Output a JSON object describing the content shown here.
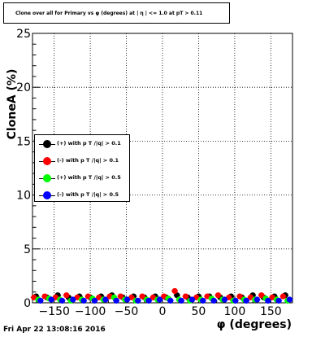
{
  "header": {
    "title": "Clone  over all for Primary vs φ (degrees) at | η | <= 1.0 at pT > 0.11"
  },
  "footer": {
    "timestamp": "Fri Apr 22 13:08:16 2016"
  },
  "chart_data": {
    "type": "scatter",
    "title": "Clone  over all for Primary vs φ (degrees) at | η | <= 1.0 at pT > 0.11",
    "xlabel": "φ (degrees)",
    "ylabel": "CloneA (%)",
    "xlim": [
      -180,
      180
    ],
    "ylim": [
      0,
      25
    ],
    "x_ticks": [
      -150,
      -100,
      -50,
      0,
      50,
      100,
      150
    ],
    "x_tick_labels": [
      "−150",
      "−100",
      "−50",
      "0",
      "50",
      "100",
      "150"
    ],
    "y_ticks": [
      0,
      5,
      10,
      15,
      20,
      25
    ],
    "y_tick_labels": [
      "0",
      "5",
      "10",
      "15",
      "20",
      "25"
    ],
    "grid": true,
    "legend_position": "left-middle",
    "series": [
      {
        "name": "(+) with p T /|q| > 0.1",
        "color": "#000000",
        "x": [
          -175,
          -160,
          -145,
          -130,
          -115,
          -100,
          -85,
          -70,
          -55,
          -40,
          -25,
          -10,
          5,
          20,
          35,
          50,
          65,
          80,
          95,
          110,
          125,
          140,
          155,
          170
        ],
        "y": [
          0.6,
          0.5,
          0.7,
          0.5,
          0.6,
          0.5,
          0.6,
          0.7,
          0.5,
          0.6,
          0.5,
          0.6,
          0.5,
          0.7,
          0.5,
          0.6,
          0.6,
          0.5,
          0.6,
          0.5,
          0.7,
          0.5,
          0.6,
          0.7
        ]
      },
      {
        "name": "(-) with p T /|q| > 0.1",
        "color": "#ff0000",
        "x": [
          -178,
          -163,
          -148,
          -133,
          -118,
          -103,
          -88,
          -73,
          -58,
          -43,
          -28,
          -13,
          2,
          17,
          32,
          47,
          62,
          77,
          92,
          107,
          122,
          137,
          152,
          167
        ],
        "y": [
          0.5,
          0.6,
          0.5,
          0.7,
          0.5,
          0.6,
          0.5,
          0.6,
          0.6,
          0.5,
          0.6,
          0.5,
          0.6,
          1.1,
          0.6,
          0.5,
          0.6,
          0.7,
          0.5,
          0.6,
          0.5,
          0.7,
          0.5,
          0.6
        ]
      },
      {
        "name": "(+) with p T /|q| > 0.5",
        "color": "#00ff00",
        "x": [
          -172,
          -157,
          -142,
          -127,
          -112,
          -97,
          -82,
          -67,
          -52,
          -37,
          -22,
          -7,
          8,
          23,
          38,
          53,
          68,
          83,
          98,
          113,
          128,
          143,
          158,
          173
        ],
        "y": [
          0.3,
          0.4,
          0.3,
          0.2,
          0.3,
          0.4,
          0.3,
          0.5,
          0.3,
          0.2,
          0.3,
          0.3,
          0.4,
          0.3,
          0.2,
          0.3,
          0.4,
          0.3,
          0.2,
          0.3,
          0.3,
          0.4,
          0.3,
          0.2
        ]
      },
      {
        "name": "(-) with p T /|q| > 0.5",
        "color": "#0000ff",
        "x": [
          -169,
          -154,
          -139,
          -124,
          -109,
          -94,
          -79,
          -64,
          -49,
          -34,
          -19,
          -4,
          11,
          26,
          41,
          56,
          71,
          86,
          101,
          116,
          131,
          146,
          161,
          176
        ],
        "y": [
          0.2,
          0.3,
          0.2,
          0.3,
          0.2,
          0.2,
          0.3,
          0.2,
          0.3,
          0.2,
          0.2,
          0.3,
          0.2,
          0.2,
          0.3,
          0.2,
          0.2,
          0.3,
          0.2,
          0.2,
          0.3,
          0.2,
          0.2,
          0.3
        ]
      }
    ]
  }
}
